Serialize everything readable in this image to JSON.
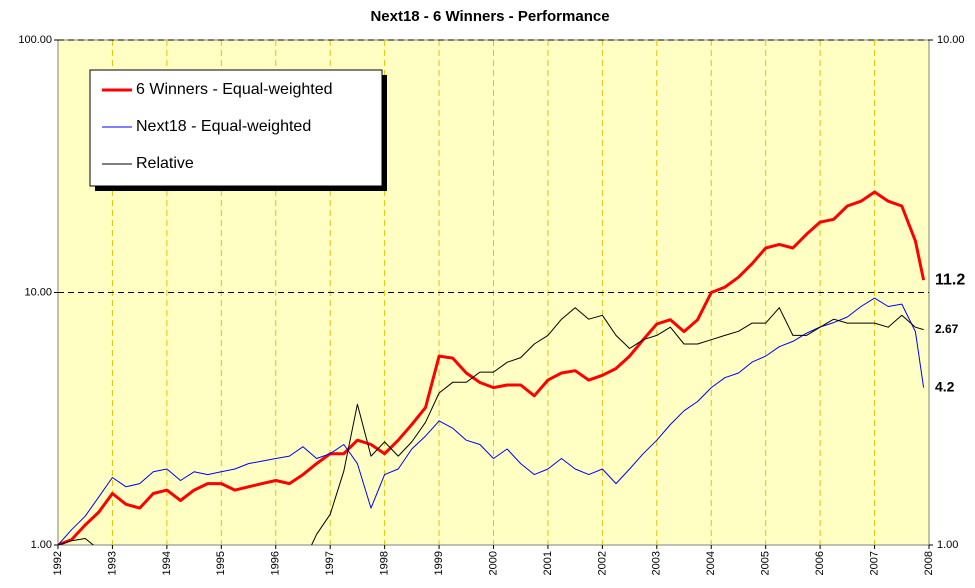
{
  "chart_data": {
    "type": "line",
    "title": "Next18 - 6 Winners - Performance",
    "log_scale": true,
    "grid": true,
    "legend": "upper left",
    "x": [
      1992,
      1992.25,
      1992.5,
      1992.75,
      1993,
      1993.25,
      1993.5,
      1993.75,
      1994,
      1994.25,
      1994.5,
      1994.75,
      1995,
      1995.25,
      1995.5,
      1995.75,
      1996,
      1996.25,
      1996.5,
      1996.75,
      1997,
      1997.25,
      1997.5,
      1997.75,
      1998,
      1998.25,
      1998.5,
      1998.75,
      1999,
      1999.25,
      1999.5,
      1999.75,
      2000,
      2000.25,
      2000.5,
      2000.75,
      2001,
      2001.25,
      2001.5,
      2001.75,
      2002,
      2002.25,
      2002.5,
      2002.75,
      2003,
      2003.25,
      2003.5,
      2003.75,
      2004,
      2004.25,
      2004.5,
      2004.75,
      2005,
      2005.25,
      2005.5,
      2005.75,
      2006,
      2006.25,
      2006.5,
      2006.75,
      2007,
      2007.25,
      2007.5,
      2007.75,
      2007.9
    ],
    "xlim": [
      1992,
      2008
    ],
    "xticks": [
      1992,
      1993,
      1994,
      1995,
      1996,
      1997,
      1998,
      1999,
      2000,
      2001,
      2002,
      2003,
      2004,
      2005,
      2006,
      2007,
      2008
    ],
    "ylim": [
      1,
      100
    ],
    "yticks": [
      {
        "value": 1,
        "label": "1.00"
      },
      {
        "value": 10,
        "label": "10.00"
      },
      {
        "value": 100,
        "label": "100.00"
      }
    ],
    "y2lim": [
      1,
      10
    ],
    "y2ticks": [
      {
        "value": 1,
        "label": "1.00"
      },
      {
        "value": 10,
        "label": "10.00"
      }
    ],
    "series": [
      {
        "name": "6 Winners - Equal-weighted",
        "color": "#ff0000",
        "line_width": 3,
        "label_color": "#ff0000",
        "values": [
          1.0,
          1.05,
          1.2,
          1.35,
          1.6,
          1.45,
          1.4,
          1.6,
          1.65,
          1.5,
          1.65,
          1.75,
          1.75,
          1.65,
          1.7,
          1.75,
          1.8,
          1.75,
          1.9,
          2.1,
          2.3,
          2.3,
          2.6,
          2.5,
          2.3,
          2.6,
          3.0,
          3.5,
          5.6,
          5.5,
          4.8,
          4.4,
          4.2,
          4.3,
          4.3,
          3.9,
          4.5,
          4.8,
          4.9,
          4.5,
          4.7,
          5.0,
          5.6,
          6.5,
          7.5,
          7.8,
          7.0,
          7.8,
          10.0,
          10.5,
          11.5,
          13,
          15,
          15.5,
          15,
          17,
          19,
          19.5,
          22,
          23,
          25,
          23,
          22,
          16,
          11.2
        ]
      },
      {
        "name": "Next18 - Equal-weighted",
        "color": "#0000ff",
        "line_width": 1,
        "label_color": "#0000ff",
        "values": [
          1.0,
          1.15,
          1.3,
          1.55,
          1.85,
          1.7,
          1.75,
          1.95,
          2.0,
          1.8,
          1.95,
          1.9,
          1.95,
          2.0,
          2.1,
          2.15,
          2.2,
          2.25,
          2.45,
          2.2,
          2.3,
          2.5,
          2.1,
          1.4,
          1.9,
          2.0,
          2.4,
          2.7,
          3.1,
          2.9,
          2.6,
          2.5,
          2.2,
          2.4,
          2.1,
          1.9,
          2.0,
          2.2,
          2.0,
          1.9,
          2.0,
          1.75,
          2.0,
          2.3,
          2.6,
          3.0,
          3.4,
          3.7,
          4.2,
          4.6,
          4.8,
          5.3,
          5.6,
          6.1,
          6.4,
          6.9,
          7.3,
          7.6,
          8.0,
          8.8,
          9.5,
          8.8,
          9.0,
          7.0,
          4.2
        ]
      },
      {
        "name": "Relative",
        "color": "#000000",
        "line_width": 1,
        "label_color": "#008000",
        "axis": "y2",
        "values": [
          1.0,
          1.02,
          1.03,
          0.98,
          0.95,
          0.92,
          0.9,
          0.9,
          0.9,
          0.88,
          0.9,
          0.9,
          0.9,
          0.88,
          0.87,
          0.87,
          0.86,
          0.85,
          0.92,
          1.05,
          1.15,
          1.4,
          1.9,
          1.5,
          1.6,
          1.5,
          1.6,
          1.75,
          2.0,
          2.1,
          2.1,
          2.2,
          2.2,
          2.3,
          2.35,
          2.5,
          2.6,
          2.8,
          2.95,
          2.8,
          2.85,
          2.6,
          2.45,
          2.55,
          2.6,
          2.7,
          2.5,
          2.5,
          2.55,
          2.6,
          2.65,
          2.75,
          2.75,
          2.95,
          2.6,
          2.6,
          2.7,
          2.8,
          2.75,
          2.75,
          2.75,
          2.7,
          2.85,
          2.7,
          2.67
        ]
      }
    ]
  }
}
